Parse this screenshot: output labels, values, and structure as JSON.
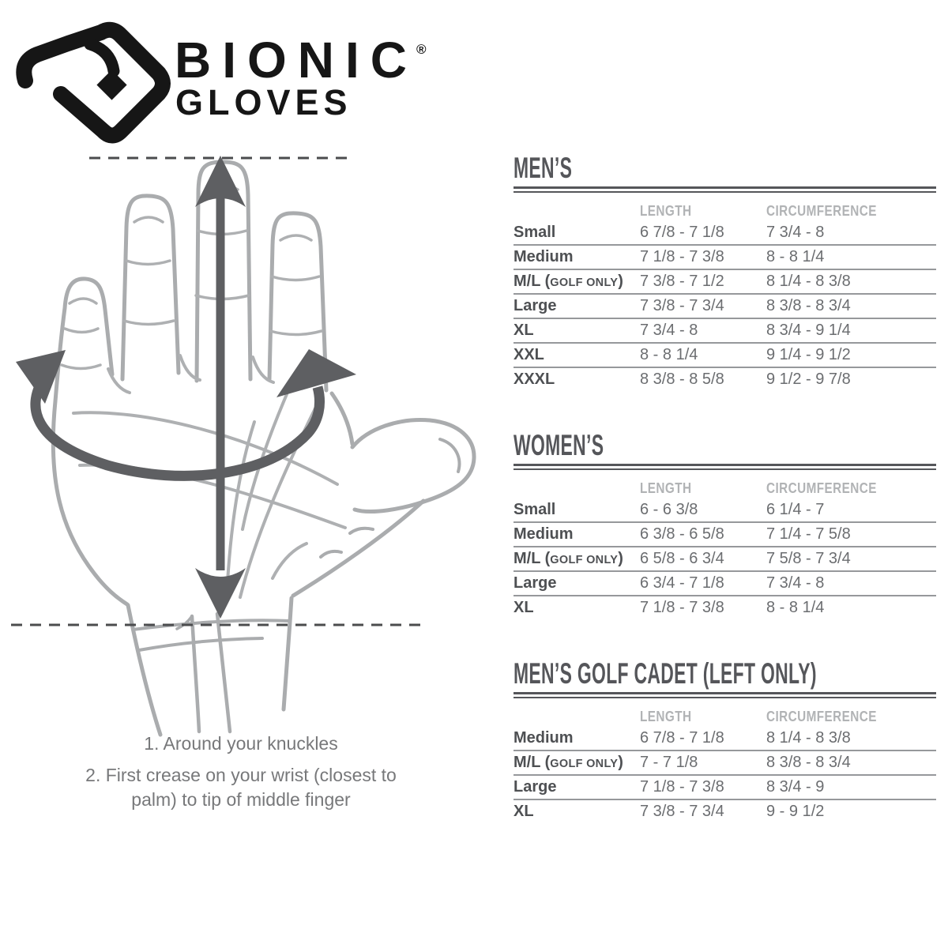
{
  "logo": {
    "brand": "BIONIC",
    "registered": "®",
    "sub": "GLOVES"
  },
  "columns": {
    "length": "LENGTH",
    "circumference": "CIRCUMFERENCE"
  },
  "tables": [
    {
      "title": "MEN’S",
      "rows": [
        {
          "size": "Small",
          "note": "",
          "length": "6 7/8 - 7 1/8",
          "circumference": "7 3/4 - 8"
        },
        {
          "size": "Medium",
          "note": "",
          "length": "7 1/8 - 7 3/8",
          "circumference": "8 - 8 1/4"
        },
        {
          "size": "M/L",
          "note": "GOLF ONLY",
          "length": "7 3/8 - 7 1/2",
          "circumference": "8 1/4 - 8 3/8"
        },
        {
          "size": "Large",
          "note": "",
          "length": "7 3/8 - 7 3/4",
          "circumference": "8 3/8 - 8 3/4"
        },
        {
          "size": "XL",
          "note": "",
          "length": "7 3/4 - 8",
          "circumference": "8 3/4 - 9 1/4"
        },
        {
          "size": "XXL",
          "note": "",
          "length": "8 - 8 1/4",
          "circumference": "9 1/4 - 9 1/2"
        },
        {
          "size": "XXXL",
          "note": "",
          "length": "8 3/8 - 8 5/8",
          "circumference": "9 1/2 - 9 7/8"
        }
      ]
    },
    {
      "title": "WOMEN’S",
      "rows": [
        {
          "size": "Small",
          "note": "",
          "length": "6 - 6 3/8",
          "circumference": "6 1/4 - 7"
        },
        {
          "size": "Medium",
          "note": "",
          "length": "6 3/8 - 6 5/8",
          "circumference": "7 1/4 - 7 5/8"
        },
        {
          "size": "M/L",
          "note": "GOLF ONLY",
          "length": "6 5/8 - 6 3/4",
          "circumference": "7 5/8 - 7 3/4"
        },
        {
          "size": "Large",
          "note": "",
          "length": "6 3/4 - 7 1/8",
          "circumference": "7 3/4 - 8"
        },
        {
          "size": "XL",
          "note": "",
          "length": "7 1/8 - 7 3/8",
          "circumference": "8 - 8 1/4"
        }
      ]
    },
    {
      "title": "MEN’S GOLF CADET (LEFT ONLY)",
      "rows": [
        {
          "size": "Medium",
          "note": "",
          "length": "6 7/8 - 7 1/8",
          "circumference": "8 1/4 - 8 3/8"
        },
        {
          "size": "M/L",
          "note": "GOLF ONLY",
          "length": "7 - 7 1/8",
          "circumference": "8 3/8 - 8 3/4"
        },
        {
          "size": "Large",
          "note": "",
          "length": "7 1/8 - 7 3/8",
          "circumference": "8 3/4 - 9"
        },
        {
          "size": "XL",
          "note": "",
          "length": "7 3/8 - 7 3/4",
          "circumference": "9 - 9 1/2"
        }
      ]
    }
  ],
  "instructions": [
    "1. Around your knuckles",
    "2. First crease on your wrist (closest to palm) to tip of middle finger"
  ],
  "colors": {
    "logo_black": "#161616",
    "title_dark": "#55565A",
    "header_gray": "#B1B3B5",
    "label_dark": "#4E5053",
    "value_gray": "#6B6D70",
    "rule_gray": "#96989B",
    "hand_gray": "#AAACAE",
    "arrow_gray": "#5E5F62",
    "dash_gray": "#4B4C4E"
  }
}
